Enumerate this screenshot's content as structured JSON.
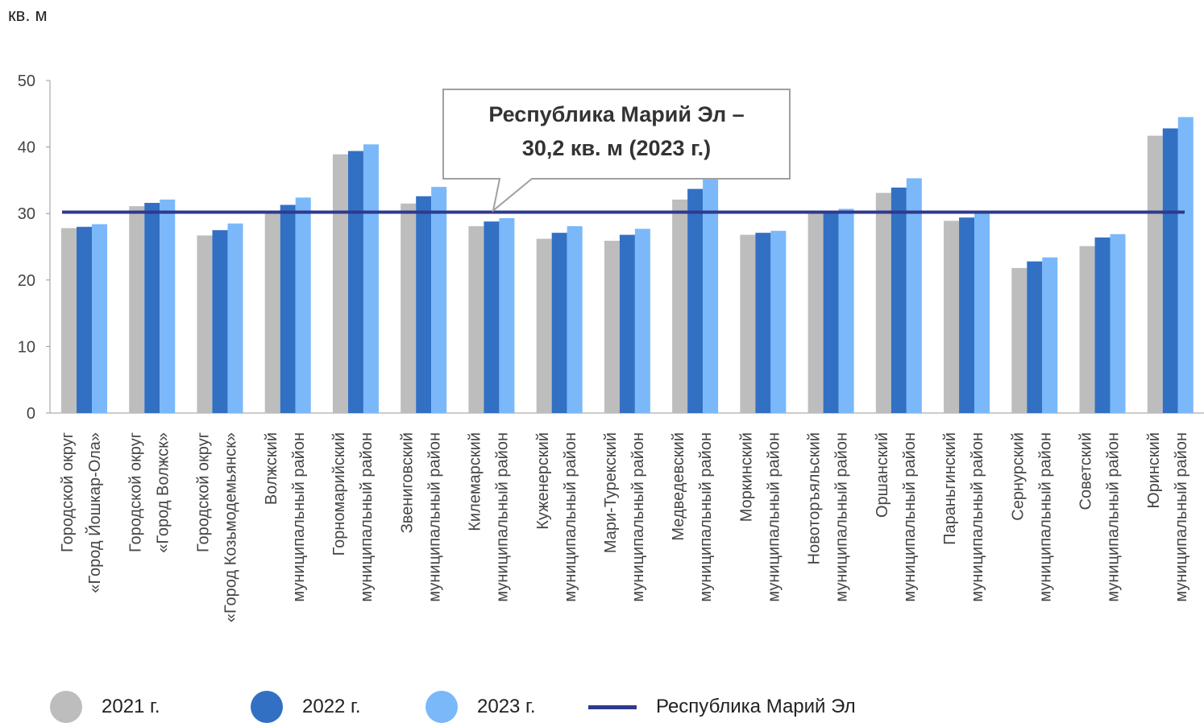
{
  "chart_data": {
    "type": "bar",
    "ylabel": "кв. м",
    "ylim": [
      0,
      50
    ],
    "yticks": [
      0,
      10,
      20,
      30,
      40,
      50
    ],
    "categories": [
      [
        "Городской округ",
        "«Город Йошкар-Ола»"
      ],
      [
        "Городской округ",
        "«Город Волжск»"
      ],
      [
        "Городской округ",
        "«Город Козьмодемьянск»"
      ],
      [
        "Волжский",
        "муниципальный район"
      ],
      [
        "Горномарийский",
        "муниципальный район"
      ],
      [
        "Звениговский",
        "муниципальный район"
      ],
      [
        "Килемарский",
        "муниципальный район"
      ],
      [
        "Куженерский",
        "муниципальный район"
      ],
      [
        "Мари-Турекский",
        "муниципальный район"
      ],
      [
        "Медведевский",
        "муниципальный район"
      ],
      [
        "Моркинский",
        "муниципальный район"
      ],
      [
        "Новоторъяльский",
        "муниципальный район"
      ],
      [
        "Оршанский",
        "муниципальный район"
      ],
      [
        "Параньгинский",
        "муниципальный район"
      ],
      [
        "Сернурский",
        "муниципальный район"
      ],
      [
        "Советский",
        "муниципальный район"
      ],
      [
        "Юринский",
        "муниципальный район"
      ]
    ],
    "series": [
      {
        "name": "2021 г.",
        "color": "#bdbdbd",
        "values": [
          27.8,
          31.1,
          26.7,
          30.2,
          38.9,
          31.5,
          28.1,
          26.2,
          25.9,
          32.1,
          26.8,
          30.1,
          33.1,
          28.9,
          21.8,
          25.1,
          41.7
        ]
      },
      {
        "name": "2022 г.",
        "color": "#3270c4",
        "values": [
          28.0,
          31.6,
          27.5,
          31.3,
          39.4,
          32.6,
          28.8,
          27.1,
          26.8,
          33.7,
          27.1,
          30.4,
          33.9,
          29.4,
          22.8,
          26.4,
          42.8
        ]
      },
      {
        "name": "2023 г.",
        "color": "#7ab8fa",
        "values": [
          28.4,
          32.1,
          28.5,
          32.4,
          40.4,
          34.0,
          29.3,
          28.1,
          27.7,
          35.6,
          27.4,
          30.7,
          35.3,
          30.0,
          23.4,
          26.9,
          44.5
        ]
      }
    ],
    "reference_line": {
      "name": "Республика Марий Эл",
      "value": 30.2,
      "color": "#2e3a8c"
    },
    "annotation": [
      "Республика Марий Эл –",
      "30,2 кв. м (2023 г.)"
    ],
    "legend_position": "bottom"
  }
}
